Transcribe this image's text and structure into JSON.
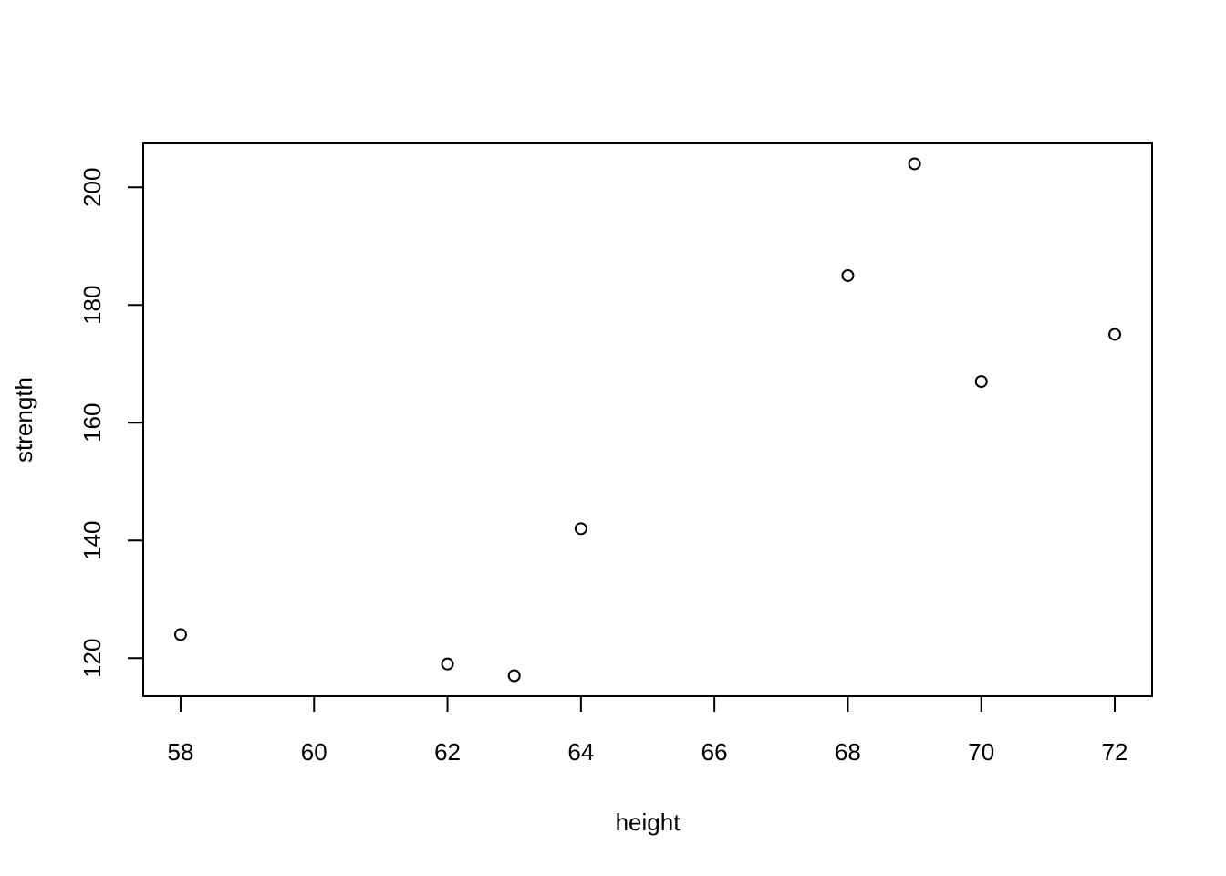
{
  "chart_data": {
    "type": "scatter",
    "x_label": "height",
    "y_label": "strength",
    "x": [
      58,
      62,
      63,
      64,
      68,
      69,
      70,
      72
    ],
    "values": [
      124,
      119,
      117,
      142,
      185,
      204,
      167,
      175
    ],
    "color": "#000000",
    "xlim": [
      57.44,
      72.56
    ],
    "xticks": [
      58,
      60,
      62,
      64,
      66,
      68,
      70,
      72
    ],
    "ylim": [
      113.52,
      207.48
    ],
    "yticks": [
      120,
      140,
      160,
      180,
      200
    ]
  }
}
